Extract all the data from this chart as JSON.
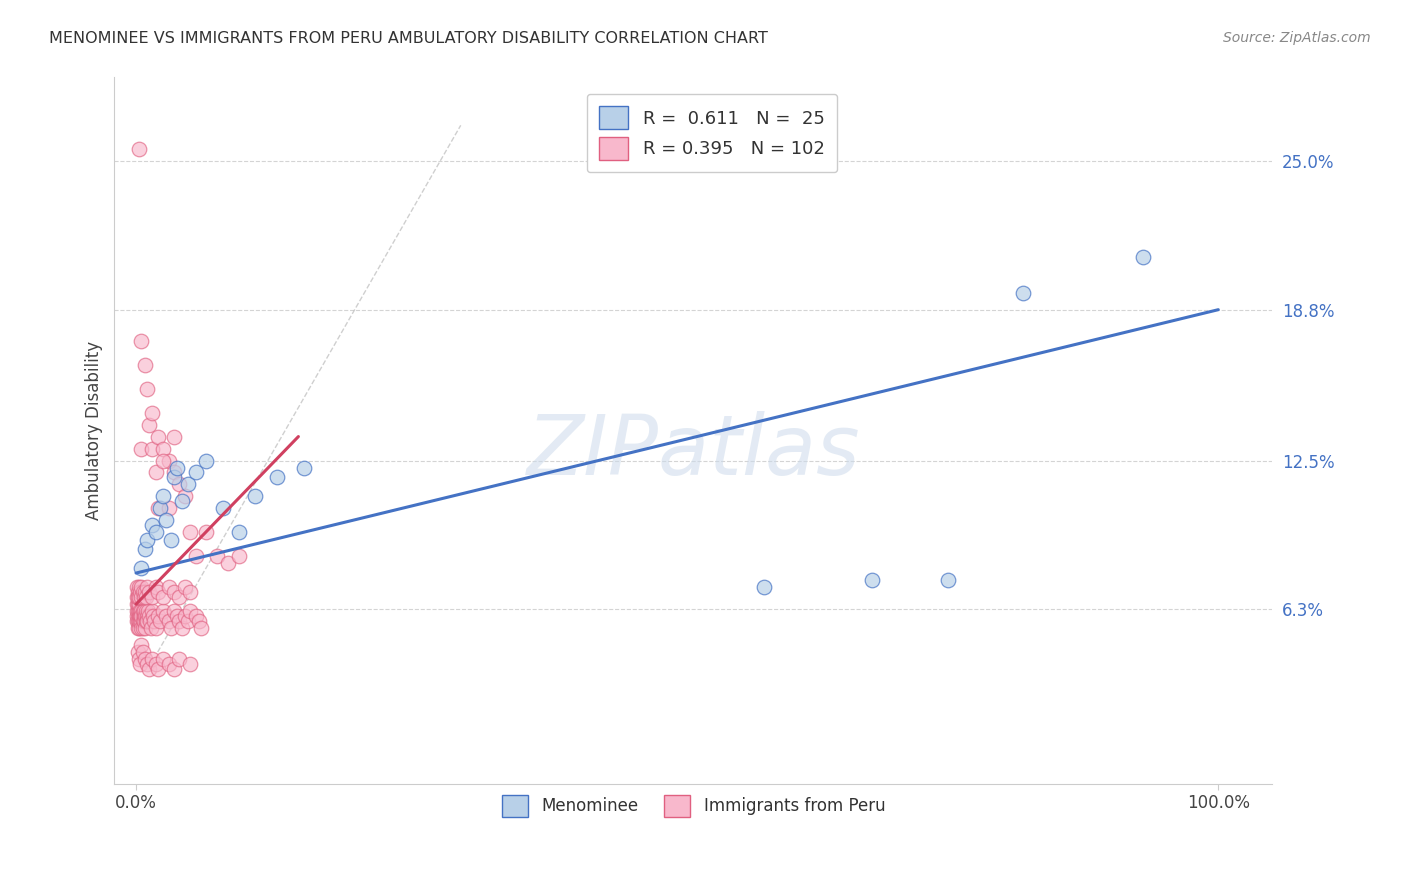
{
  "title": "MENOMINEE VS IMMIGRANTS FROM PERU AMBULATORY DISABILITY CORRELATION CHART",
  "source": "Source: ZipAtlas.com",
  "ylabel": "Ambulatory Disability",
  "xlim": [
    -0.02,
    1.05
  ],
  "ylim": [
    -0.01,
    0.285
  ],
  "xtick_positions": [
    0.0,
    1.0
  ],
  "xtick_labels": [
    "0.0%",
    "100.0%"
  ],
  "ytick_values": [
    0.063,
    0.125,
    0.188,
    0.25
  ],
  "ytick_labels": [
    "6.3%",
    "12.5%",
    "18.8%",
    "25.0%"
  ],
  "color_menominee_face": "#b8d0e8",
  "color_menominee_edge": "#4472c4",
  "color_peru_face": "#f8b8cc",
  "color_peru_edge": "#e06080",
  "trendline_blue": "#4472c4",
  "trendline_pink": "#d04060",
  "grid_color": "#d0d0d0",
  "watermark": "ZIPatlas",
  "background": "#ffffff",
  "menominee_x": [
    0.005,
    0.008,
    0.01,
    0.015,
    0.018,
    0.022,
    0.025,
    0.028,
    0.032,
    0.035,
    0.038,
    0.042,
    0.048,
    0.055,
    0.065,
    0.08,
    0.095,
    0.11,
    0.13,
    0.155,
    0.58,
    0.68,
    0.75,
    0.82,
    0.93
  ],
  "menominee_y": [
    0.08,
    0.088,
    0.092,
    0.098,
    0.095,
    0.105,
    0.11,
    0.1,
    0.092,
    0.118,
    0.122,
    0.108,
    0.115,
    0.12,
    0.125,
    0.105,
    0.095,
    0.11,
    0.118,
    0.122,
    0.072,
    0.075,
    0.075,
    0.195,
    0.21
  ],
  "peru_dense_x": [
    0.001,
    0.001,
    0.001,
    0.001,
    0.002,
    0.002,
    0.002,
    0.002,
    0.003,
    0.003,
    0.003,
    0.003,
    0.003,
    0.004,
    0.004,
    0.004,
    0.005,
    0.005,
    0.005,
    0.005,
    0.006,
    0.006,
    0.006,
    0.007,
    0.007,
    0.007,
    0.008,
    0.008,
    0.009,
    0.009,
    0.01,
    0.01,
    0.011,
    0.012,
    0.013,
    0.014,
    0.015,
    0.016,
    0.017,
    0.018,
    0.02,
    0.022,
    0.025,
    0.028,
    0.03,
    0.032,
    0.035,
    0.038,
    0.04,
    0.042,
    0.045,
    0.048,
    0.05,
    0.055,
    0.058,
    0.06,
    0.001,
    0.001,
    0.002,
    0.002,
    0.003,
    0.003,
    0.004,
    0.005,
    0.005,
    0.006,
    0.007,
    0.008,
    0.009,
    0.01,
    0.012,
    0.015,
    0.018,
    0.02,
    0.025,
    0.03,
    0.035,
    0.04,
    0.045,
    0.05,
    0.002,
    0.003,
    0.004,
    0.005,
    0.006,
    0.008,
    0.01,
    0.012,
    0.015,
    0.018,
    0.02,
    0.025,
    0.03,
    0.035,
    0.04,
    0.05,
    0.003,
    0.005
  ],
  "peru_dense_y": [
    0.06,
    0.062,
    0.058,
    0.065,
    0.058,
    0.062,
    0.055,
    0.065,
    0.06,
    0.055,
    0.062,
    0.058,
    0.065,
    0.058,
    0.062,
    0.06,
    0.058,
    0.062,
    0.055,
    0.06,
    0.062,
    0.058,
    0.055,
    0.06,
    0.058,
    0.062,
    0.055,
    0.06,
    0.058,
    0.062,
    0.06,
    0.058,
    0.062,
    0.06,
    0.058,
    0.055,
    0.062,
    0.06,
    0.058,
    0.055,
    0.06,
    0.058,
    0.062,
    0.06,
    0.058,
    0.055,
    0.062,
    0.06,
    0.058,
    0.055,
    0.06,
    0.058,
    0.062,
    0.06,
    0.058,
    0.055,
    0.068,
    0.072,
    0.07,
    0.068,
    0.068,
    0.072,
    0.07,
    0.068,
    0.072,
    0.07,
    0.068,
    0.07,
    0.068,
    0.072,
    0.07,
    0.068,
    0.072,
    0.07,
    0.068,
    0.072,
    0.07,
    0.068,
    0.072,
    0.07,
    0.045,
    0.042,
    0.04,
    0.048,
    0.045,
    0.042,
    0.04,
    0.038,
    0.042,
    0.04,
    0.038,
    0.042,
    0.04,
    0.038,
    0.042,
    0.04,
    0.255,
    0.175
  ],
  "peru_outlier_x": [
    0.005,
    0.008,
    0.01,
    0.012,
    0.015,
    0.018,
    0.02,
    0.025,
    0.03,
    0.035,
    0.04,
    0.045,
    0.05,
    0.055,
    0.065,
    0.075,
    0.085,
    0.095,
    0.015,
    0.025,
    0.035,
    0.02,
    0.03
  ],
  "peru_outlier_y": [
    0.13,
    0.165,
    0.155,
    0.14,
    0.13,
    0.12,
    0.135,
    0.13,
    0.125,
    0.12,
    0.115,
    0.11,
    0.095,
    0.085,
    0.095,
    0.085,
    0.082,
    0.085,
    0.145,
    0.125,
    0.135,
    0.105,
    0.105
  ]
}
